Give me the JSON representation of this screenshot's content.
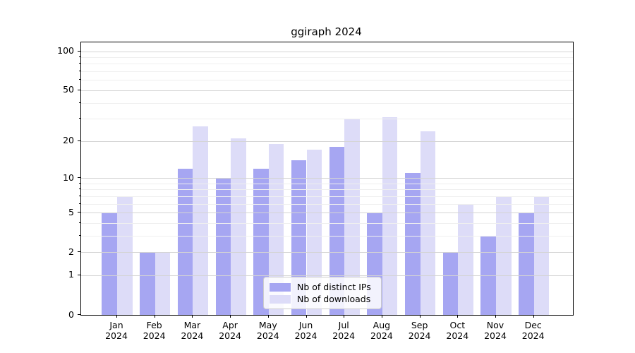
{
  "chart_data": {
    "type": "bar",
    "title": "ggiraph 2024",
    "categories": [
      "Jan",
      "Feb",
      "Mar",
      "Apr",
      "May",
      "Jun",
      "Jul",
      "Aug",
      "Sep",
      "Oct",
      "Nov",
      "Dec"
    ],
    "x_year_label": "2024",
    "series": [
      {
        "name": "Nb of distinct IPs",
        "color": "#a6a6f2",
        "values": [
          5,
          2,
          12,
          10,
          12,
          14,
          18,
          5,
          11,
          2,
          3,
          5
        ]
      },
      {
        "name": "Nb of downloads",
        "color": "#dddcf8",
        "values": [
          7,
          2,
          26,
          21,
          19,
          17,
          30,
          31,
          24,
          6,
          7,
          7
        ]
      }
    ],
    "y_scale": "log1p",
    "ylim": [
      0,
      117
    ],
    "y_major_ticks": [
      0,
      1,
      2,
      5,
      10,
      20,
      50,
      100
    ],
    "y_minor_gridlines": [
      3,
      4,
      6,
      7,
      8,
      9,
      30,
      40,
      60,
      70,
      80,
      90
    ],
    "grid": true,
    "legend_position": "lower center",
    "xlabel": "",
    "ylabel": ""
  },
  "colors": {
    "background": "#ffffff",
    "axis": "#000000",
    "grid_major": "#d4d4d4",
    "grid_minor": "#efefef",
    "legend_border": "#cccccc"
  }
}
